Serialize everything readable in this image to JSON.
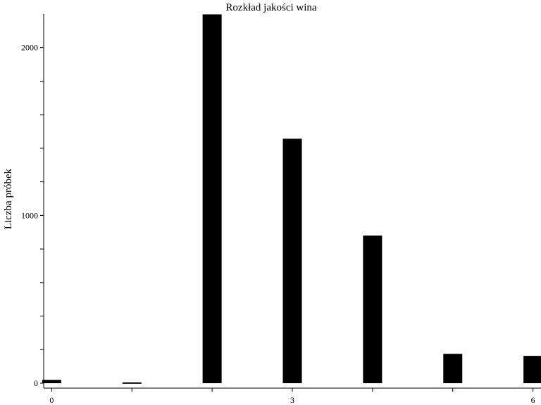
{
  "chart_data": {
    "type": "bar",
    "title": "Rozkład jakości wina",
    "xlabel": "",
    "ylabel": "Liczba próbek",
    "x": [
      0,
      1,
      2,
      3,
      4,
      5,
      6
    ],
    "values": [
      20,
      5,
      2198,
      1457,
      880,
      175,
      163
    ],
    "xlim": [
      -0.1,
      6.1
    ],
    "ylim": [
      0,
      2200
    ],
    "x_ticks": [
      0,
      1,
      2,
      3,
      4,
      5,
      6
    ],
    "x_tick_labels": [
      "0",
      "",
      "",
      "3",
      "",
      "",
      "6"
    ],
    "y_ticks": [
      0,
      200,
      400,
      600,
      800,
      1000,
      1200,
      1400,
      1600,
      1800,
      2000
    ],
    "y_tick_labels": [
      "0",
      "",
      "",
      "",
      "",
      "1000",
      "",
      "",
      "",
      "",
      "2000"
    ],
    "bar_color": "#000000",
    "grid": false,
    "legend": "none"
  }
}
